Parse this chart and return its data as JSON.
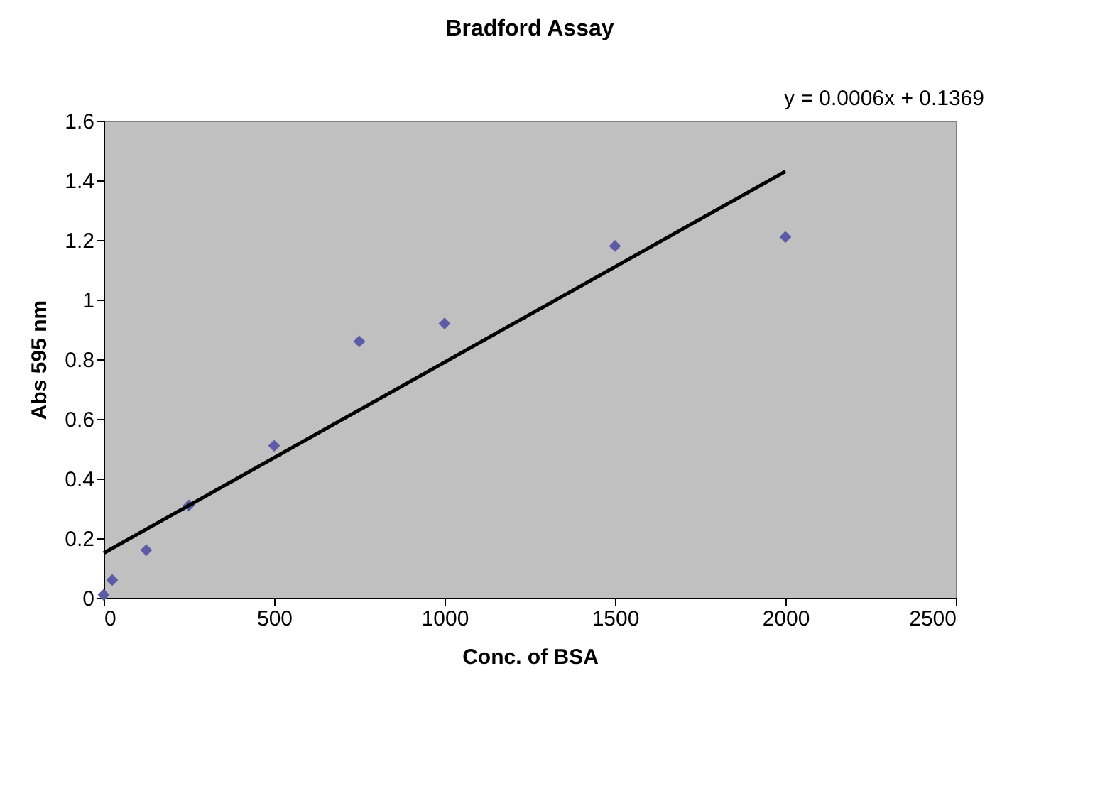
{
  "chart_data": {
    "type": "scatter",
    "title": "Bradford Assay",
    "xlabel": "Conc. of BSA",
    "ylabel": "Abs 595 nm",
    "annotations": [
      "y = 0.0006x + 0.1369"
    ],
    "series": [
      {
        "color": "#5b5ba6",
        "marker": "diamond",
        "x": [
          0,
          25,
          125,
          250,
          500,
          750,
          1000,
          1500,
          2000
        ],
        "values": [
          0.01,
          0.06,
          0.16,
          0.31,
          0.51,
          0.86,
          0.92,
          1.18,
          1.21
        ]
      },
      {
        "type": "line",
        "color": "#000000",
        "x": [
          0,
          2000
        ],
        "values": [
          0.15,
          1.43
        ]
      }
    ],
    "xlim": [
      0,
      2500
    ],
    "xticks": [
      0,
      500,
      1000,
      1500,
      2000,
      2500
    ],
    "ylim": [
      0,
      1.6
    ],
    "yticks": [
      0,
      0.2,
      0.4,
      0.6,
      0.8,
      1,
      1.2,
      1.4,
      1.6
    ],
    "grid": false,
    "legend": false
  }
}
